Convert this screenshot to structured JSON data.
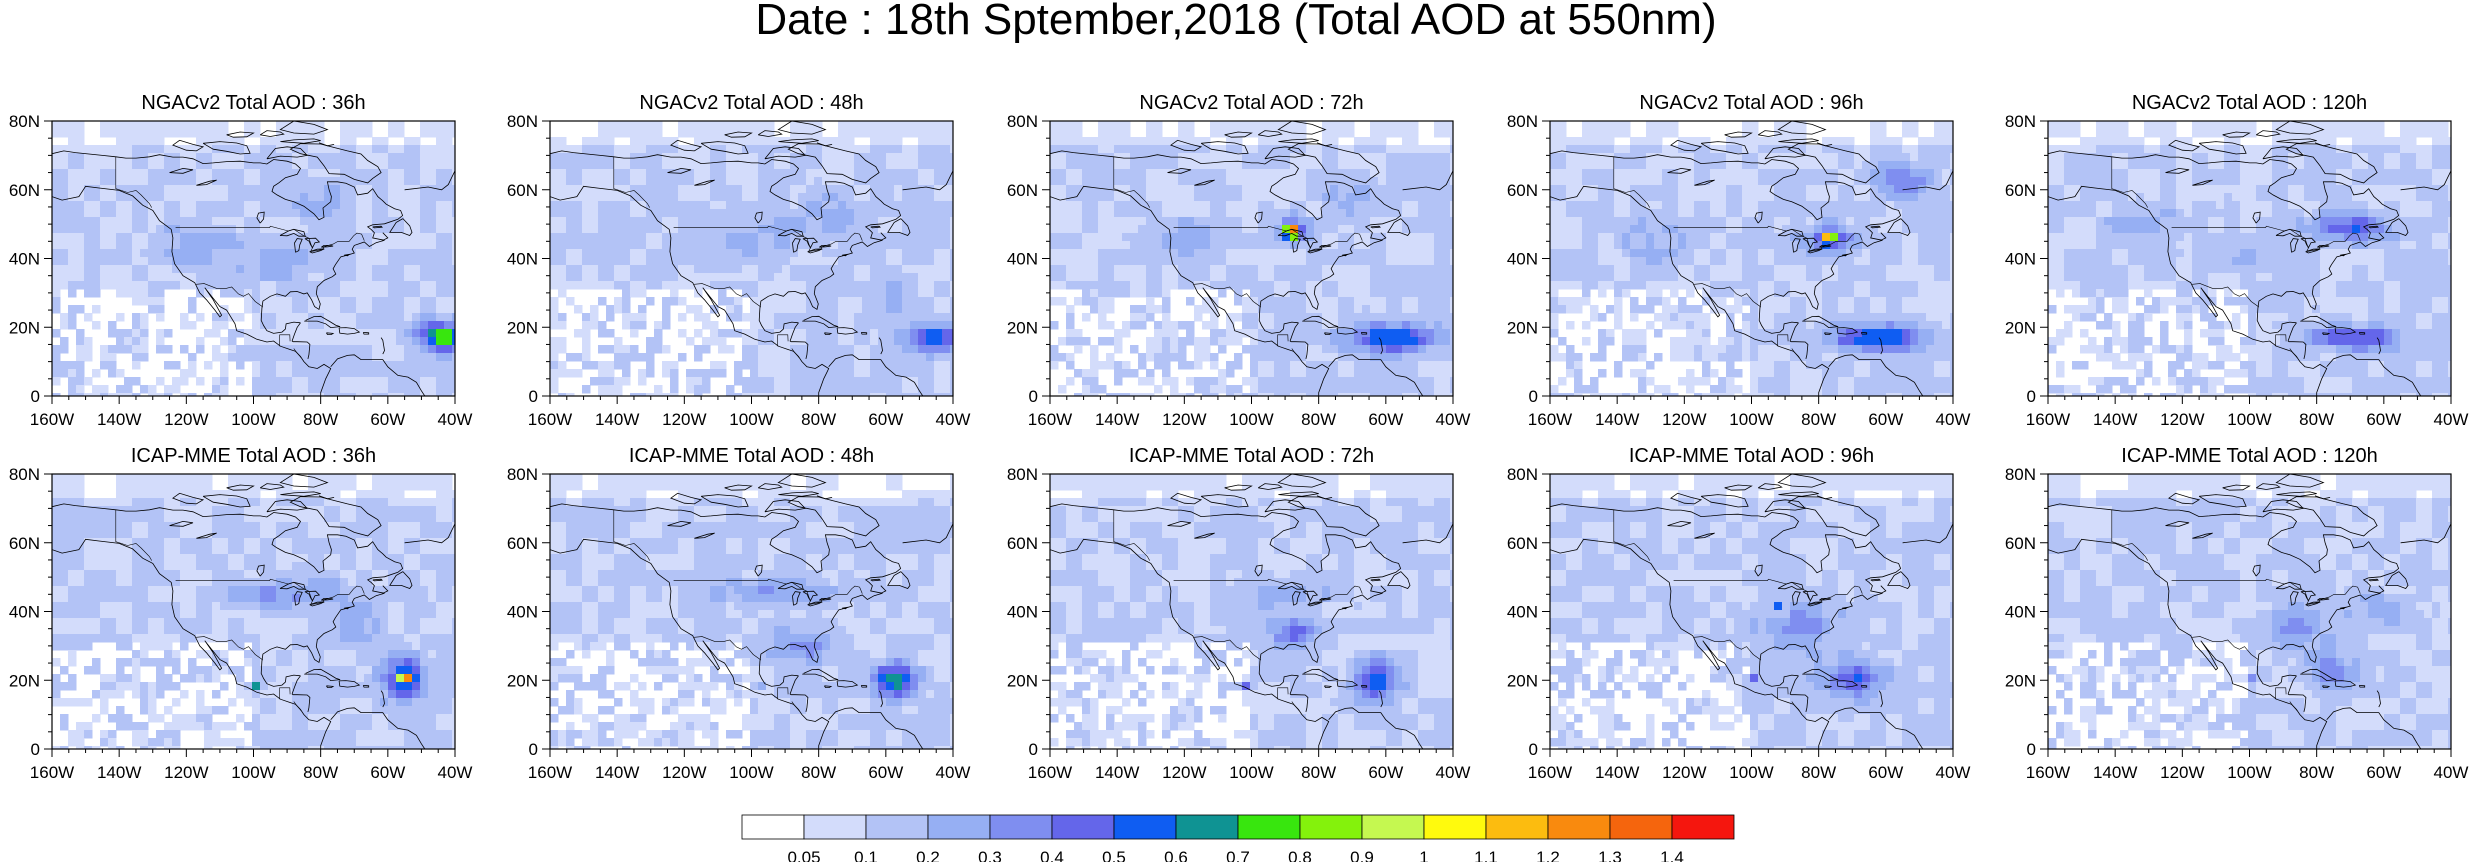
{
  "title": "Date : 18th Sptember,2018 (Total AOD at 550nm)",
  "panels": [
    {
      "title": "NGACv2 Total AOD : 36h",
      "model": "NGACv2",
      "lead_hours": 36,
      "plumes": [
        [
          -45,
          18,
          7,
          4,
          0.55
        ],
        [
          -42,
          16,
          4,
          3,
          0.25
        ],
        [
          -95,
          40,
          14,
          6,
          0.12
        ],
        [
          -120,
          45,
          12,
          6,
          0.12
        ],
        [
          -80,
          56,
          10,
          6,
          0.12
        ]
      ]
    },
    {
      "title": "NGACv2 Total AOD : 48h",
      "model": "NGACv2",
      "lead_hours": 48,
      "plumes": [
        [
          -45,
          17,
          8,
          4,
          0.5
        ],
        [
          -100,
          45,
          15,
          6,
          0.12
        ],
        [
          -75,
          52,
          10,
          7,
          0.12
        ],
        [
          -60,
          28,
          10,
          6,
          0.08
        ]
      ]
    },
    {
      "title": "NGACv2 Total AOD : 72h",
      "model": "NGACv2",
      "lead_hours": 72,
      "plumes": [
        [
          -88,
          48,
          2.2,
          2,
          1.0
        ],
        [
          -88,
          48,
          5,
          4,
          0.35
        ],
        [
          -58,
          17,
          12,
          4,
          0.5
        ],
        [
          -120,
          46,
          12,
          5,
          0.14
        ],
        [
          -70,
          57,
          9,
          6,
          0.15
        ]
      ]
    },
    {
      "title": "NGACv2 Total AOD : 96h",
      "model": "NGACv2",
      "lead_hours": 96,
      "plumes": [
        [
          -77,
          46,
          2,
          1.6,
          0.85
        ],
        [
          -77,
          46,
          8,
          4,
          0.3
        ],
        [
          -62,
          17,
          14,
          4,
          0.48
        ],
        [
          -55,
          63,
          7,
          5,
          0.3
        ],
        [
          -130,
          45,
          10,
          6,
          0.14
        ]
      ]
    },
    {
      "title": "NGACv2 Total AOD : 120h",
      "model": "NGACv2",
      "lead_hours": 120,
      "plumes": [
        [
          -70,
          49,
          12,
          4,
          0.38
        ],
        [
          -68,
          17,
          14,
          3.5,
          0.38
        ],
        [
          -100,
          40,
          8,
          4,
          0.14
        ],
        [
          -130,
          50,
          12,
          6,
          0.12
        ]
      ]
    },
    {
      "title": "ICAP-MME Total AOD : 36h",
      "model": "ICAP-MME",
      "lead_hours": 36,
      "plumes": [
        [
          -55,
          21,
          1.5,
          1.3,
          1.0
        ],
        [
          -55,
          20,
          6,
          6,
          0.55
        ],
        [
          -90,
          45,
          22,
          4,
          0.18
        ],
        [
          -99,
          19,
          1.2,
          1,
          0.8
        ],
        [
          -70,
          35,
          8,
          6,
          0.15
        ]
      ]
    },
    {
      "title": "ICAP-MME Total AOD : 48h",
      "model": "ICAP-MME",
      "lead_hours": 48,
      "plumes": [
        [
          -57,
          20,
          6,
          5,
          0.58
        ],
        [
          -110,
          43,
          1,
          1,
          0.7
        ],
        [
          -98,
          18,
          1,
          1,
          0.7
        ],
        [
          -85,
          30,
          10,
          5,
          0.22
        ],
        [
          -95,
          46,
          18,
          4,
          0.18
        ]
      ]
    },
    {
      "title": "ICAP-MME Total AOD : 72h",
      "model": "ICAP-MME",
      "lead_hours": 72,
      "plumes": [
        [
          -63,
          20,
          6,
          6,
          0.42
        ],
        [
          -101,
          19,
          1.2,
          1,
          0.78
        ],
        [
          -88,
          34,
          6,
          4,
          0.35
        ],
        [
          -90,
          45,
          15,
          4,
          0.15
        ]
      ]
    },
    {
      "title": "ICAP-MME Total AOD : 96h",
      "model": "ICAP-MME",
      "lead_hours": 96,
      "plumes": [
        [
          -70,
          20,
          9,
          5,
          0.38
        ],
        [
          -85,
          35,
          12,
          6,
          0.25
        ],
        [
          -100,
          20,
          1.2,
          1,
          0.78
        ],
        [
          -92,
          42,
          1,
          1,
          0.5
        ]
      ]
    },
    {
      "title": "ICAP-MME Total AOD : 120h",
      "model": "ICAP-MME",
      "lead_hours": 120,
      "plumes": [
        [
          -75,
          22,
          8,
          5,
          0.28
        ],
        [
          -85,
          35,
          12,
          6,
          0.2
        ],
        [
          -100,
          20,
          1,
          1,
          0.7
        ],
        [
          -60,
          40,
          10,
          5,
          0.15
        ]
      ]
    }
  ],
  "map": {
    "lon_range": [
      -160,
      -40
    ],
    "lat_range": [
      0,
      80
    ],
    "lon_ticks": [
      -160,
      -140,
      -120,
      -100,
      -80,
      -60,
      -40
    ],
    "lon_tick_labels": [
      "160W",
      "140W",
      "120W",
      "100W",
      "80W",
      "60W",
      "40W"
    ],
    "lat_ticks": [
      0,
      20,
      40,
      60,
      80
    ],
    "lat_tick_labels": [
      "0",
      "20N",
      "40N",
      "60N",
      "80N"
    ],
    "background_aod": 0.12
  },
  "colorbar": {
    "levels": [
      "0.05",
      "0.1",
      "0.2",
      "0.3",
      "0.4",
      "0.5",
      "0.6",
      "0.7",
      "0.8",
      "0.9",
      "1",
      "1.1",
      "1.2",
      "1.3",
      "1.4"
    ],
    "level_values": [
      0.05,
      0.1,
      0.2,
      0.3,
      0.4,
      0.5,
      0.6,
      0.7,
      0.8,
      0.9,
      1.0,
      1.1,
      1.2,
      1.3,
      1.4
    ],
    "colors": [
      "#ffffff",
      "#d3dcfb",
      "#b3c3f6",
      "#96aff3",
      "#7f8ef0",
      "#6466ea",
      "#0f5df2",
      "#0f9393",
      "#38e60e",
      "#84f20c",
      "#c5f850",
      "#fffa0d",
      "#fcbc0f",
      "#f98a0e",
      "#f5650d",
      "#f5160e"
    ]
  }
}
